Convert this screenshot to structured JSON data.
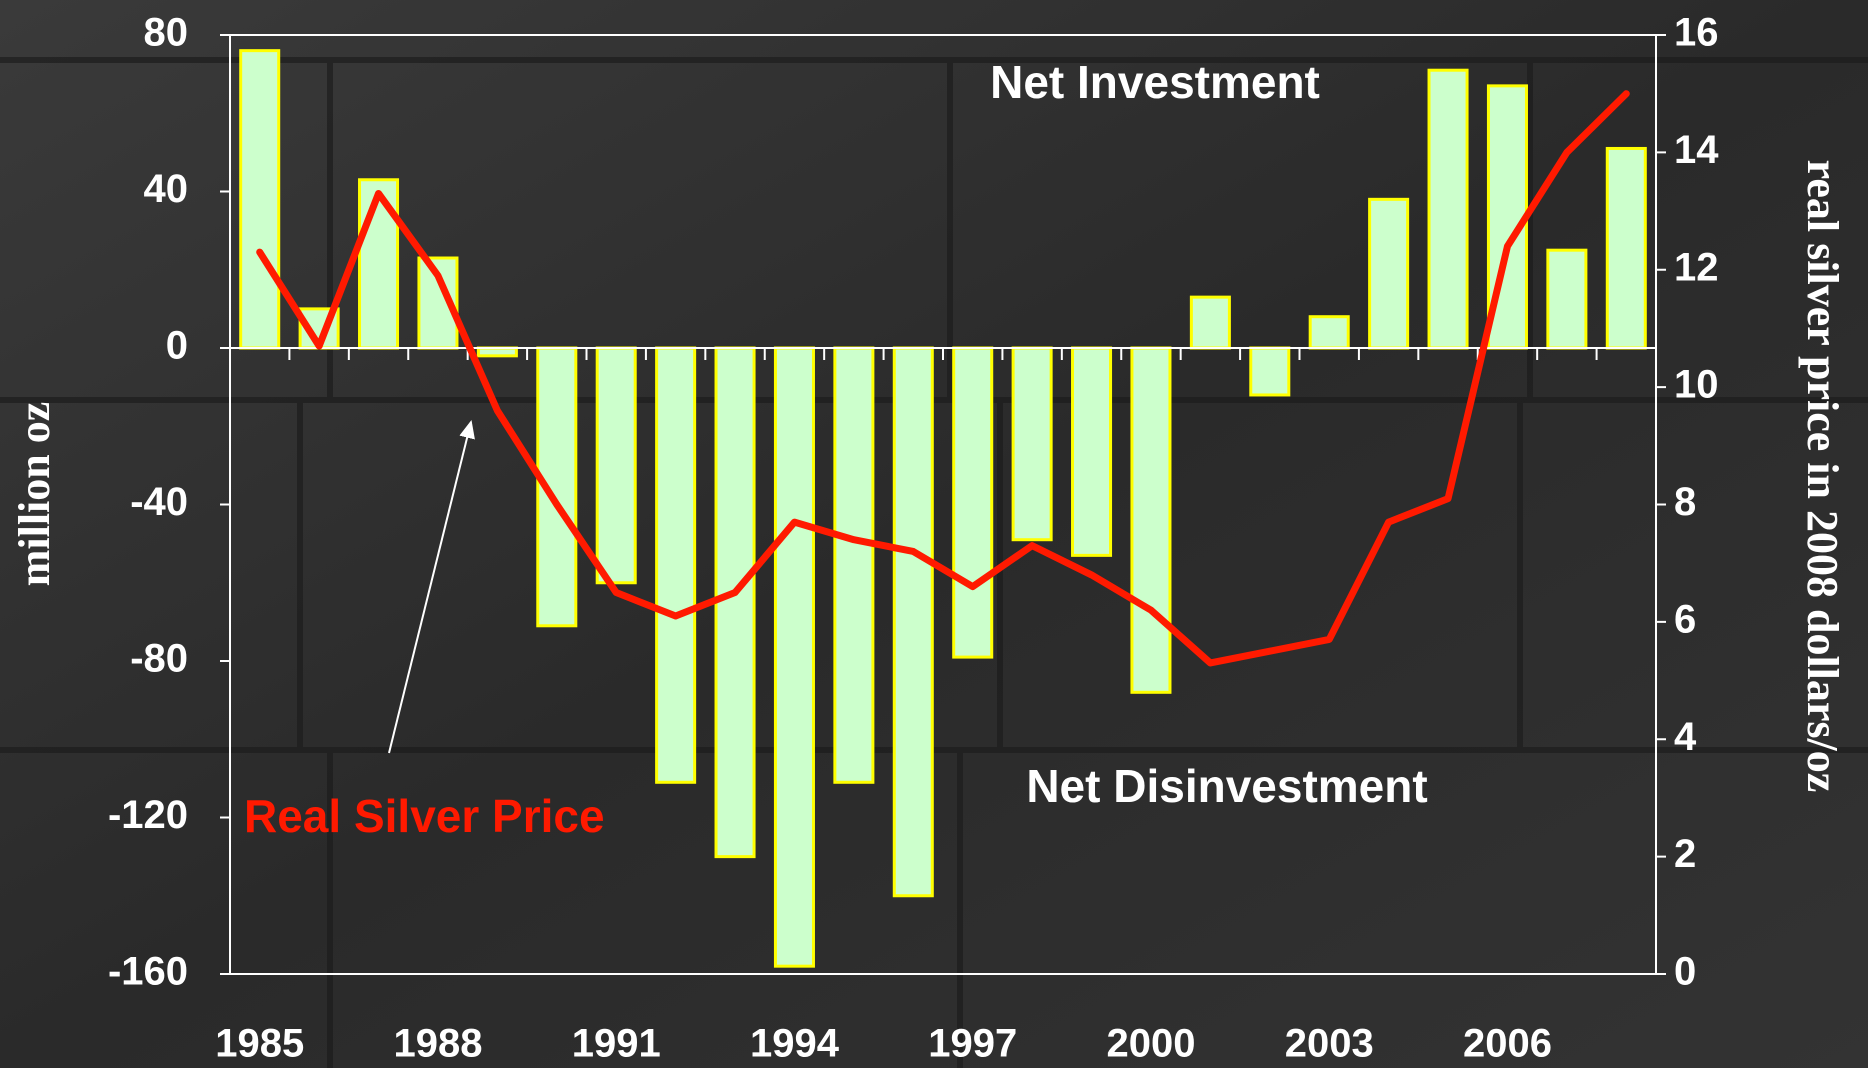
{
  "chart_data": {
    "type": "bar",
    "categories": [
      "1985",
      null,
      null,
      "1988",
      null,
      null,
      "1991",
      null,
      null,
      "1994",
      null,
      null,
      "1997",
      null,
      null,
      "2000",
      null,
      null,
      "2003",
      null,
      null,
      "2006",
      null,
      null
    ],
    "series": [
      {
        "type": "bar",
        "color": "#ccffcc",
        "edge_color": "#ffff00",
        "values": [
          76,
          10,
          43,
          23,
          -2,
          -71,
          -60,
          -111,
          -130,
          -158,
          -111,
          -140,
          -79,
          -49,
          -53,
          -88,
          13,
          -12,
          8,
          38,
          71,
          67,
          25,
          51
        ]
      },
      {
        "type": "line",
        "name": "Real Silver Price",
        "axis": "y2",
        "color": "#ff1a00",
        "values": [
          12.3,
          10.7,
          13.3,
          11.9,
          9.6,
          8.0,
          6.5,
          6.1,
          6.5,
          7.7,
          7.4,
          7.2,
          6.6,
          7.3,
          6.8,
          6.2,
          5.3,
          5.5,
          5.7,
          7.7,
          8.1,
          12.4,
          14.0,
          15.0
        ]
      }
    ],
    "ylabel": "million oz",
    "y2label": "real silver price in 2008 dollars/oz",
    "ylim": [
      -160,
      80
    ],
    "yticks": [
      -160,
      -120,
      -80,
      -40,
      0,
      40,
      80
    ],
    "y2lim": [
      0,
      16
    ],
    "y2ticks": [
      0,
      2,
      4,
      6,
      8,
      10,
      12,
      14,
      16
    ],
    "annotations": [
      "Net Investment",
      "Net Disinvestment"
    ]
  }
}
